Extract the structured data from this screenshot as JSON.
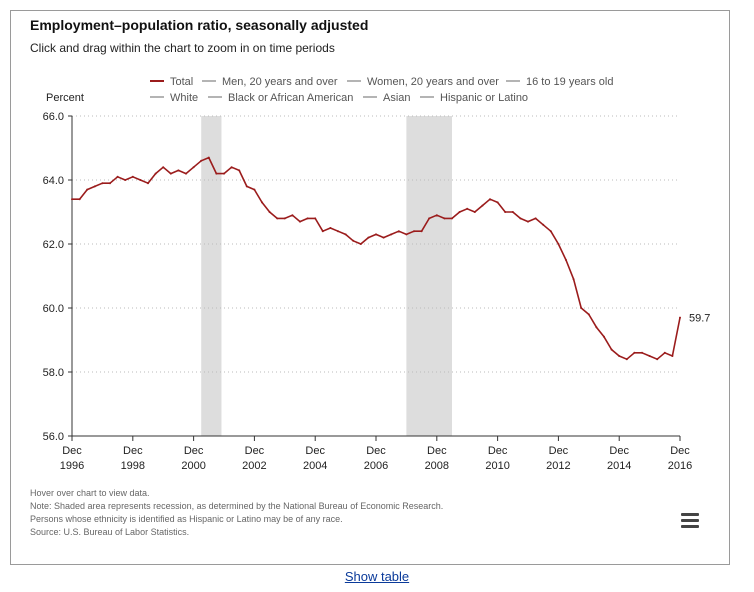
{
  "title": "Employment–population ratio, seasonally adjusted",
  "subtitle": "Click and drag within the chart to zoom in on time periods",
  "notes": [
    "Hover over chart to view data.",
    "Note: Shaded area represents recession, as determined by the National Bureau of Economic Research.",
    "Persons whose ethnicity is identified as Hispanic or Latino may be of any race.",
    "Source: U.S. Bureau of Labor Statistics."
  ],
  "show_table_label": "Show table",
  "menu_icon": "hamburger-menu-icon",
  "chart_data": {
    "type": "line",
    "title": "Employment–population ratio, seasonally adjusted",
    "ylabel": "Percent",
    "xlabel": "",
    "ylim": [
      56.0,
      66.0
    ],
    "y_ticks": [
      "56.0",
      "58.0",
      "60.0",
      "62.0",
      "64.0",
      "66.0"
    ],
    "x_ticks": [
      {
        "month": "Dec",
        "year": "1996",
        "t": 1996.917
      },
      {
        "month": "Dec",
        "year": "1998",
        "t": 1998.917
      },
      {
        "month": "Dec",
        "year": "2000",
        "t": 2000.917
      },
      {
        "month": "Dec",
        "year": "2002",
        "t": 2002.917
      },
      {
        "month": "Dec",
        "year": "2004",
        "t": 2004.917
      },
      {
        "month": "Dec",
        "year": "2006",
        "t": 2006.917
      },
      {
        "month": "Dec",
        "year": "2008",
        "t": 2008.917
      },
      {
        "month": "Dec",
        "year": "2010",
        "t": 2010.917
      },
      {
        "month": "Dec",
        "year": "2012",
        "t": 2012.917
      },
      {
        "month": "Dec",
        "year": "2014",
        "t": 2014.917
      },
      {
        "month": "Dec",
        "year": "2016",
        "t": 2016.917
      }
    ],
    "x_range": [
      "Dec 1996",
      "Dec 2016"
    ],
    "recessions": [
      {
        "start": "Mar 2001",
        "end": "Nov 2001"
      },
      {
        "start": "Dec 2007",
        "end": "Jun 2009"
      }
    ],
    "grid": "horizontal dotted",
    "legend_position": "top",
    "legend": [
      {
        "label": "Total",
        "color": "#9b1c1c",
        "active": true
      },
      {
        "label": "Men, 20 years and over",
        "color": "#9a9a9a",
        "active": false
      },
      {
        "label": "Women, 20 years and over",
        "color": "#9a9a9a",
        "active": false
      },
      {
        "label": "16 to 19 years old",
        "color": "#9a9a9a",
        "active": false
      },
      {
        "label": "White",
        "color": "#9a9a9a",
        "active": false
      },
      {
        "label": "Black or African American",
        "color": "#9a9a9a",
        "active": false
      },
      {
        "label": "Asian",
        "color": "#9a9a9a",
        "active": false
      },
      {
        "label": "Hispanic or Latino",
        "color": "#9a9a9a",
        "active": false
      }
    ],
    "series": [
      {
        "name": "Total",
        "color": "#9b1c1c",
        "end_label": "59.7",
        "points": [
          [
            "Dec 1996",
            63.4
          ],
          [
            "Mar 1997",
            63.4
          ],
          [
            "Jun 1997",
            63.7
          ],
          [
            "Sep 1997",
            63.8
          ],
          [
            "Dec 1997",
            63.9
          ],
          [
            "Mar 1998",
            63.9
          ],
          [
            "Jun 1998",
            64.1
          ],
          [
            "Sep 1998",
            64.0
          ],
          [
            "Dec 1998",
            64.1
          ],
          [
            "Mar 1999",
            64.0
          ],
          [
            "Jun 1999",
            63.9
          ],
          [
            "Sep 1999",
            64.2
          ],
          [
            "Dec 1999",
            64.4
          ],
          [
            "Mar 2000",
            64.2
          ],
          [
            "Jun 2000",
            64.3
          ],
          [
            "Sep 2000",
            64.2
          ],
          [
            "Dec 2000",
            64.4
          ],
          [
            "Mar 2001",
            64.6
          ],
          [
            "Jun 2001",
            64.7
          ],
          [
            "Sep 2001",
            64.2
          ],
          [
            "Dec 2001",
            64.2
          ],
          [
            "Mar 2002",
            64.4
          ],
          [
            "Jun 2002",
            64.3
          ],
          [
            "Sep 2002",
            63.8
          ],
          [
            "Dec 2002",
            63.7
          ],
          [
            "Mar 2003",
            63.3
          ],
          [
            "Jun 2003",
            63.0
          ],
          [
            "Sep 2003",
            62.8
          ],
          [
            "Dec 2003",
            62.8
          ],
          [
            "Mar 2004",
            62.9
          ],
          [
            "Jun 2004",
            62.7
          ],
          [
            "Sep 2004",
            62.8
          ],
          [
            "Dec 2004",
            62.8
          ],
          [
            "Mar 2005",
            62.4
          ],
          [
            "Jun 2005",
            62.5
          ],
          [
            "Sep 2005",
            62.4
          ],
          [
            "Dec 2005",
            62.3
          ],
          [
            "Mar 2006",
            62.1
          ],
          [
            "Jun 2006",
            62.0
          ],
          [
            "Sep 2006",
            62.2
          ],
          [
            "Dec 2006",
            62.3
          ],
          [
            "Mar 2007",
            62.2
          ],
          [
            "Jun 2007",
            62.3
          ],
          [
            "Sep 2007",
            62.4
          ],
          [
            "Dec 2007",
            62.3
          ],
          [
            "Mar 2008",
            62.4
          ],
          [
            "Jun 2008",
            62.4
          ],
          [
            "Sep 2008",
            62.8
          ],
          [
            "Dec 2008",
            62.9
          ],
          [
            "Mar 2009",
            62.8
          ],
          [
            "Jun 2009",
            62.8
          ],
          [
            "Sep 2009",
            63.0
          ],
          [
            "Dec 2009",
            63.1
          ],
          [
            "Mar 2010",
            63.0
          ],
          [
            "Jun 2010",
            63.2
          ],
          [
            "Sep 2010",
            63.4
          ],
          [
            "Dec 2010",
            63.3
          ],
          [
            "Mar 2011",
            63.0
          ],
          [
            "Jun 2011",
            63.0
          ],
          [
            "Sep 2011",
            62.8
          ],
          [
            "Dec 2011",
            62.7
          ],
          [
            "Mar 2012",
            62.8
          ],
          [
            "Jun 2012",
            62.6
          ],
          [
            "Sep 2012",
            62.4
          ],
          [
            "Dec 2012",
            62.0
          ],
          [
            "Mar 2013",
            61.5
          ],
          [
            "Jun 2013",
            60.9
          ],
          [
            "Sep 2013",
            60.0
          ],
          [
            "Dec 2013",
            59.8
          ],
          [
            "Mar 2014",
            59.4
          ],
          [
            "Jun 2014",
            59.1
          ],
          [
            "Sep 2014",
            58.7
          ],
          [
            "Dec 2014",
            58.5
          ],
          [
            "Mar 2015",
            58.4
          ],
          [
            "Jun 2015",
            58.6
          ],
          [
            "Sep 2015",
            58.6
          ],
          [
            "Dec 2015",
            58.5
          ],
          [
            "Mar 2016",
            58.4
          ],
          [
            "Jun 2016",
            58.6
          ],
          [
            "Sep 2016",
            58.5
          ],
          [
            "Dec 2016",
            59.7
          ]
        ]
      }
    ]
  }
}
